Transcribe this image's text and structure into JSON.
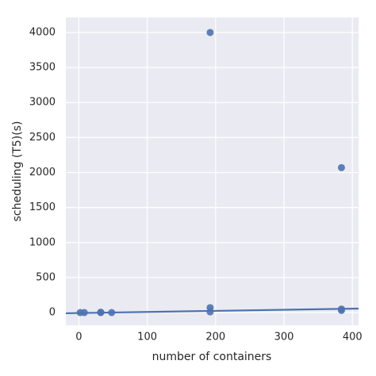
{
  "chart_data": {
    "type": "scatter",
    "x_label": "number of containers",
    "y_label": "scheduling (T5)(s)",
    "x": [
      2,
      8,
      32,
      32,
      48,
      192,
      192,
      192,
      384,
      384,
      384
    ],
    "values": [
      0,
      0,
      0,
      5,
      0,
      4000,
      70,
      10,
      2070,
      50,
      30
    ],
    "color": "#4c72b0",
    "regression": {
      "x": [
        -19,
        409
      ],
      "values": [
        -10,
        57
      ]
    },
    "xlim": [
      -19,
      409
    ],
    "xticks": [
      0,
      100,
      200,
      300,
      400
    ],
    "ylim": [
      -181,
      4215
    ],
    "yticks": [
      0,
      500,
      1000,
      1500,
      2000,
      2500,
      3000,
      3500,
      4000
    ],
    "grid": true
  }
}
